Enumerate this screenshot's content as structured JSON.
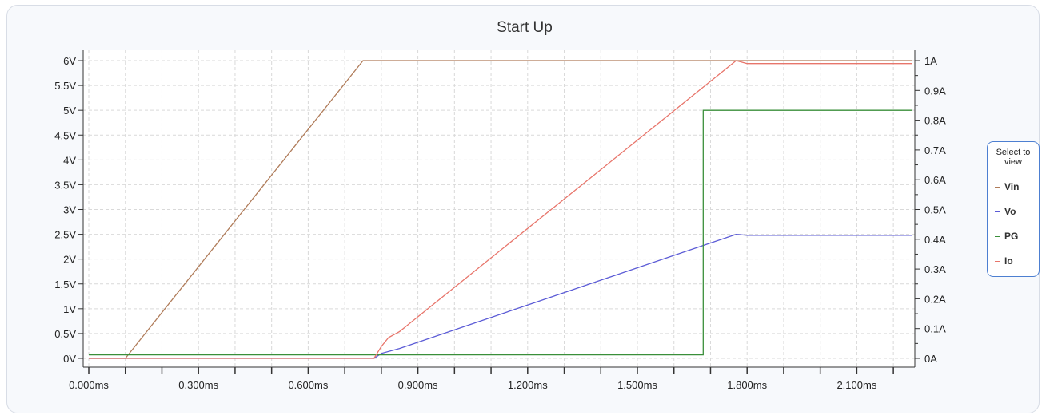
{
  "chart_data": {
    "type": "line",
    "title": "Start Up",
    "x_ticks": [
      "0.000ms",
      "0.300ms",
      "0.600ms",
      "0.900ms",
      "1.200ms",
      "1.500ms",
      "1.800ms",
      "2.100ms"
    ],
    "y_left_ticks": [
      "0V",
      "0.5V",
      "1V",
      "1.5V",
      "2V",
      "2.5V",
      "3V",
      "3.5V",
      "4V",
      "4.5V",
      "5V",
      "5.5V",
      "6V"
    ],
    "y_right_ticks": [
      "0A",
      "0.1A",
      "0.2A",
      "0.3A",
      "0.4A",
      "0.5A",
      "0.6A",
      "0.7A",
      "0.8A",
      "0.9A",
      "1A"
    ],
    "xlim": [
      0,
      2.25
    ],
    "ylim_left": [
      0,
      6
    ],
    "ylim_right": [
      0,
      1
    ],
    "grid": true,
    "legend_placement": "right",
    "legend_title": "Select to view",
    "series": [
      {
        "name": "Vin",
        "axis": "left",
        "color": "#b07c5a",
        "x": [
          0,
          0.1,
          0.75,
          2.25
        ],
        "y": [
          0,
          0,
          6.0,
          6.0
        ]
      },
      {
        "name": "Vo",
        "axis": "left",
        "color": "#5b5bd6",
        "x": [
          0,
          0.78,
          0.8,
          0.85,
          1.77,
          1.8,
          2.25
        ],
        "y": [
          0,
          0,
          0.1,
          0.2,
          2.5,
          2.48,
          2.48
        ]
      },
      {
        "name": "PG",
        "axis": "left",
        "color": "#3a8f3a",
        "x": [
          0,
          1.68,
          1.68,
          2.25
        ],
        "y": [
          0.07,
          0.07,
          5.0,
          5.0
        ]
      },
      {
        "name": "Io",
        "axis": "right",
        "color": "#e8756b",
        "x": [
          0,
          0.78,
          0.8,
          0.82,
          0.85,
          1.77,
          1.8,
          2.25
        ],
        "y": [
          0,
          0,
          0.04,
          0.07,
          0.09,
          1.0,
          0.99,
          0.99
        ]
      }
    ]
  }
}
